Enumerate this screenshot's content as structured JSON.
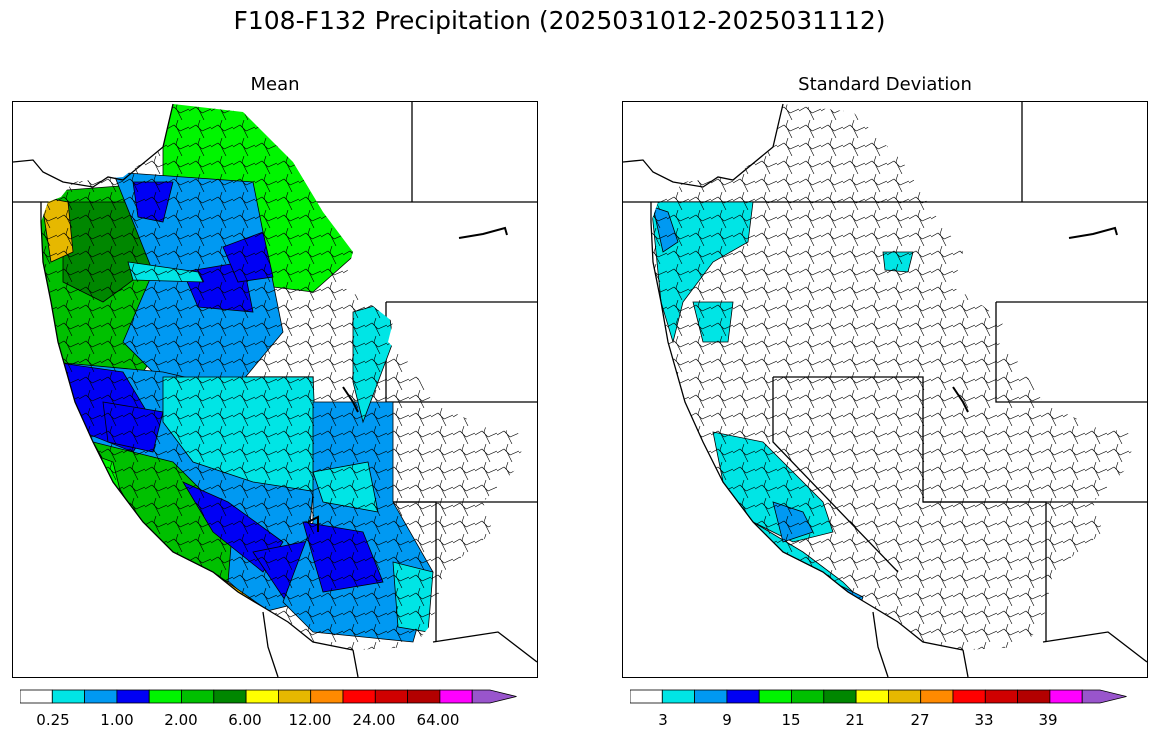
{
  "title": "F108-F132 Precipitation (2025031012-2025031112)",
  "panels": {
    "mean": {
      "title": "Mean",
      "colorbar": {
        "colors": [
          "#ffffff",
          "#00e5e5",
          "#0099f2",
          "#0000f5",
          "#00f500",
          "#00c000",
          "#008700",
          "#ffff00",
          "#e6b800",
          "#ff8a00",
          "#ff0000",
          "#d00000",
          "#b30000",
          "#ff00ff",
          "#9955cc"
        ],
        "labels": [
          "0.25",
          "1.00",
          "2.00",
          "6.00",
          "12.00",
          "24.00",
          "64.00"
        ],
        "extend": "max"
      }
    },
    "std": {
      "title": "Standard Deviation",
      "colorbar": {
        "colors": [
          "#ffffff",
          "#00e5e5",
          "#0099f2",
          "#0000f5",
          "#00f500",
          "#00c000",
          "#008700",
          "#ffff00",
          "#e6b800",
          "#ff8a00",
          "#ff0000",
          "#d00000",
          "#b30000",
          "#ff00ff",
          "#9955cc"
        ],
        "labels": [
          "3",
          "9",
          "15",
          "21",
          "27",
          "33",
          "39"
        ],
        "extend": "max"
      }
    }
  }
}
